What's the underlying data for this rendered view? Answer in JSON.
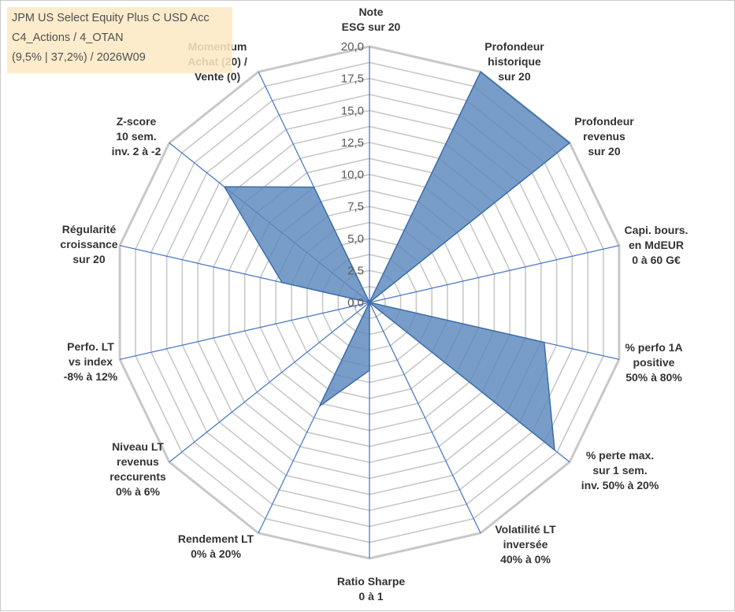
{
  "title_box": {
    "line1": "JPM US Select Equity Plus C USD Acc",
    "line2": "C4_Actions / 4_OTAN",
    "line3": "(9,5% | 37,2%) / 2026W09"
  },
  "colors": {
    "fill": "#5a87bd",
    "stroke": "#3b6ea8",
    "grid": "#c8c8c8",
    "spoke": "#4472c4"
  },
  "chart_data": {
    "type": "radar",
    "title": "",
    "rmin": 0,
    "rmax": 20,
    "tick_labels": [
      "0,0",
      "2,5",
      "5,0",
      "7,5",
      "10,0",
      "12,5",
      "15,0",
      "17,5",
      "20,0"
    ],
    "axes": [
      {
        "label": [
          "Note",
          "ESG sur 20"
        ],
        "value": 0
      },
      {
        "label": [
          "Profondeur",
          "historique",
          "sur 20"
        ],
        "value": 20
      },
      {
        "label": [
          "Profondeur",
          "revenus",
          "sur 20"
        ],
        "value": 20
      },
      {
        "label": [
          "Capi. bours.",
          "en MdEUR",
          "0 à 60 G€"
        ],
        "value": 0
      },
      {
        "label": [
          "% perfo 1A",
          "positive",
          "50% à 80%"
        ],
        "value": 14
      },
      {
        "label": [
          "% perte max.",
          "sur 1 sem.",
          "inv. 50% à 20%"
        ],
        "value": 18.5
      },
      {
        "label": [
          "Volatilité LT",
          "inversée",
          "40% à 0%"
        ],
        "value": 0
      },
      {
        "label": [
          "Ratio Sharpe",
          "0 à 1"
        ],
        "value": 5.3
      },
      {
        "label": [
          "Rendement LT",
          "0% à 20%"
        ],
        "value": 9
      },
      {
        "label": [
          "Niveau LT",
          "revenus",
          "reccurents",
          "0% à 6%"
        ],
        "value": 0
      },
      {
        "label": [
          "Perfo. LT",
          "vs index",
          "-8% à 12%"
        ],
        "value": 0
      },
      {
        "label": [
          "Régularité",
          "croissance",
          "sur 20"
        ],
        "value": 7
      },
      {
        "label": [
          "Z-score",
          "10 sem.",
          "inv. 2 à -2"
        ],
        "value": 3
      },
      {
        "label": [
          "Z-score",
          "10 sem.",
          "inv. 2 à -2"
        ],
        "value": 14.5,
        "hidden_label": true
      },
      {
        "label": [
          "Momentum",
          "Achat (20) /",
          "Vente (0)"
        ],
        "value": 10
      }
    ]
  }
}
